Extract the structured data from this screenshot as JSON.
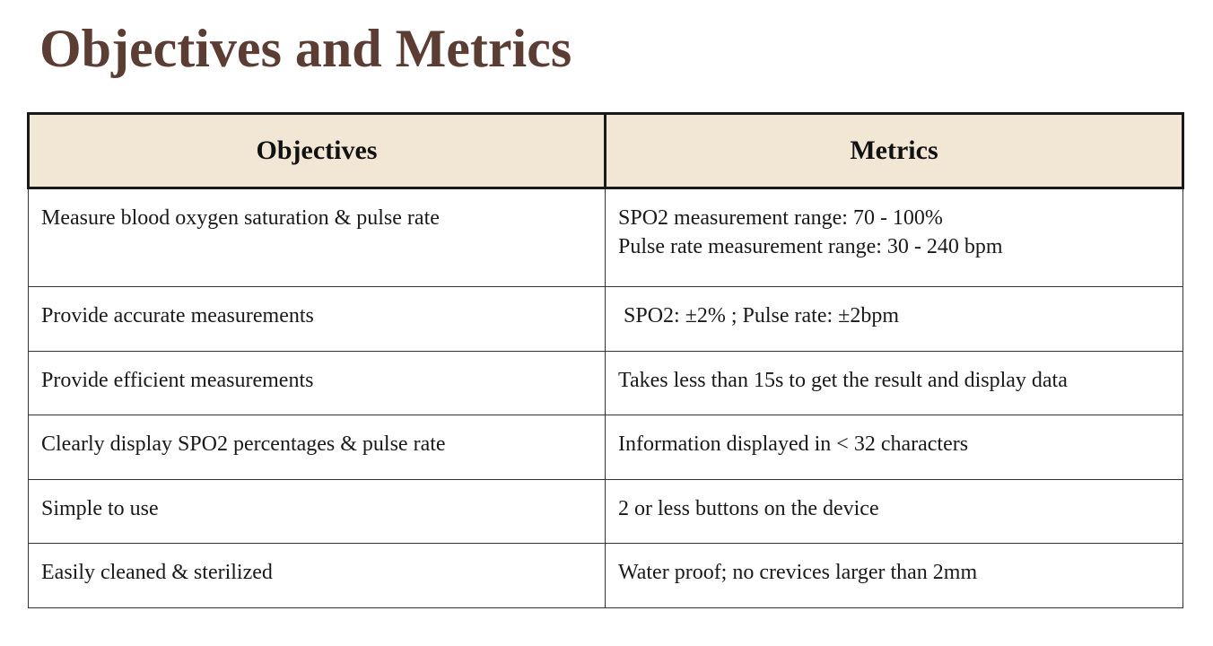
{
  "slide": {
    "title": "Objectives and Metrics"
  },
  "table": {
    "headers": {
      "objectives": "Objectives",
      "metrics": "Metrics"
    },
    "rows": [
      {
        "objective": "Measure blood oxygen saturation & pulse rate",
        "metric_lines": [
          "SPO2 measurement range: 70 - 100%",
          "Pulse rate measurement range: 30 - 240 bpm"
        ]
      },
      {
        "objective": "Provide accurate measurements",
        "metric_lines": [
          " SPO2: ±2% ; Pulse rate: ±2bpm"
        ]
      },
      {
        "objective": "Provide efficient measurements",
        "metric_lines": [
          "Takes less than 15s to get the result and display data"
        ]
      },
      {
        "objective": "Clearly display SPO2 percentages & pulse rate",
        "metric_lines": [
          "Information displayed in < 32 characters"
        ]
      },
      {
        "objective": "Simple to use",
        "metric_lines": [
          "2 or less buttons on the device"
        ]
      },
      {
        "objective": "Easily cleaned & sterilized",
        "metric_lines": [
          "Water proof; no crevices larger than 2mm"
        ]
      }
    ]
  },
  "colors": {
    "title": "#5b3d33",
    "header_background": "#f2e6d5",
    "border": "#1a1a1a",
    "text": "#1a1a1a"
  }
}
